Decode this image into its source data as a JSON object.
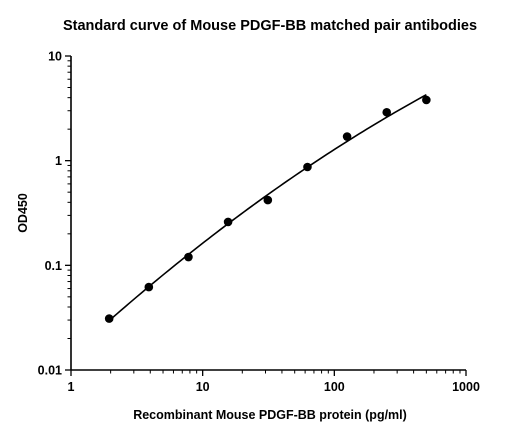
{
  "chart_data": {
    "type": "scatter",
    "title": "Standard curve of Mouse PDGF-BB matched pair antibodies",
    "xlabel": "Recombinant Mouse PDGF-BB protein (pg/ml)",
    "ylabel": "OD450",
    "xscale": "log",
    "yscale": "log",
    "xlim": [
      1,
      1000
    ],
    "ylim": [
      0.01,
      10
    ],
    "x_ticks": [
      1,
      10,
      100,
      1000
    ],
    "x_tick_labels": [
      "1",
      "10",
      "100",
      "1000"
    ],
    "y_ticks": [
      0.01,
      0.1,
      1,
      10
    ],
    "y_tick_labels": [
      "0.01",
      "0.1",
      "1",
      "10"
    ],
    "grid": false,
    "legend": "none",
    "fit_line": true,
    "series": [
      {
        "x": [
          1.95,
          3.9,
          7.8,
          15.6,
          31.25,
          62.5,
          125,
          250,
          500
        ],
        "y": [
          0.031,
          0.062,
          0.12,
          0.26,
          0.42,
          0.87,
          1.7,
          2.9,
          3.8
        ]
      }
    ]
  }
}
